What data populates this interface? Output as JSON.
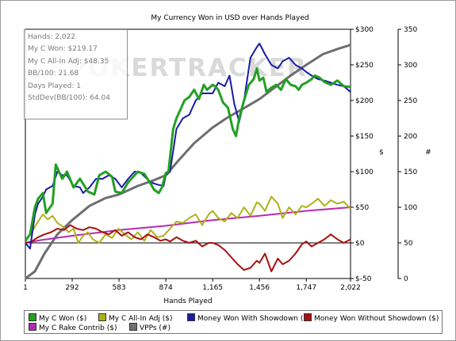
{
  "chart_data": {
    "type": "line",
    "title": "My Currency Won in USD over Hands Played",
    "xlabel": "Hands Played",
    "ylabel_left": "$",
    "ylabel_right": "#",
    "watermark": "POKERTRACKER",
    "x_ticks": [
      "1",
      "292",
      "583",
      "874",
      "1,165",
      "1,456",
      "1,747",
      "2,022"
    ],
    "x_range": [
      1,
      2022
    ],
    "y_left_ticks": [
      "$300",
      "$250",
      "$200",
      "$150",
      "$100",
      "$50",
      "$0",
      "$-50"
    ],
    "y_left_range": [
      -50,
      300
    ],
    "y_right_ticks": [
      "350",
      "300",
      "250",
      "200",
      "150",
      "100",
      "50",
      "0"
    ],
    "y_right_range": [
      0,
      350
    ],
    "grid": false,
    "legend_position": "bottom",
    "stats": [
      "Hands: 2,022",
      "My C Won: $219.17",
      "My C All-In Adj: $48.35",
      "BB/100: 21.68",
      "Days Played: 1",
      "StdDev(BB/100): 64.04"
    ],
    "series": [
      {
        "name": "My C Won ($)",
        "color": "#22a022",
        "axis": "left",
        "x": [
          1,
          30,
          60,
          80,
          110,
          130,
          170,
          190,
          230,
          260,
          300,
          340,
          360,
          390,
          430,
          460,
          500,
          540,
          560,
          600,
          640,
          680,
          700,
          740,
          780,
          800,
          830,
          850,
          874,
          890,
          920,
          940,
          960,
          990,
          1020,
          1050,
          1080,
          1110,
          1130,
          1165,
          1180,
          1200,
          1230,
          1260,
          1290,
          1310,
          1330,
          1360,
          1390,
          1420,
          1440,
          1456,
          1480,
          1500,
          1530,
          1560,
          1590,
          1620,
          1650,
          1680,
          1700,
          1720,
          1747,
          1780,
          1800,
          1830,
          1860,
          1900,
          1940,
          1980,
          2022
        ],
        "y": [
          3,
          12,
          50,
          62,
          70,
          42,
          55,
          110,
          90,
          100,
          78,
          90,
          83,
          72,
          68,
          95,
          100,
          93,
          72,
          70,
          85,
          95,
          100,
          97,
          83,
          75,
          70,
          78,
          98,
          100,
          160,
          175,
          185,
          200,
          205,
          215,
          202,
          222,
          215,
          222,
          220,
          215,
          197,
          190,
          160,
          150,
          175,
          200,
          222,
          230,
          245,
          228,
          232,
          212,
          218,
          222,
          215,
          230,
          222,
          220,
          215,
          222,
          225,
          230,
          235,
          232,
          226,
          222,
          228,
          220,
          219
        ]
      },
      {
        "name": "My C All-In Adj ($)",
        "color": "#b0b018",
        "axis": "left",
        "x": [
          1,
          40,
          80,
          110,
          140,
          170,
          200,
          240,
          270,
          300,
          330,
          360,
          390,
          420,
          460,
          500,
          540,
          580,
          620,
          660,
          700,
          740,
          780,
          820,
          860,
          900,
          940,
          980,
          1020,
          1060,
          1100,
          1140,
          1165,
          1200,
          1240,
          1280,
          1320,
          1360,
          1400,
          1440,
          1456,
          1490,
          1530,
          1570,
          1600,
          1640,
          1680,
          1720,
          1747,
          1780,
          1820,
          1860,
          1900,
          1940,
          1980,
          2022
        ],
        "y": [
          3,
          15,
          30,
          40,
          33,
          38,
          28,
          22,
          15,
          20,
          0,
          10,
          15,
          5,
          0,
          12,
          7,
          20,
          12,
          5,
          15,
          3,
          18,
          8,
          10,
          20,
          30,
          28,
          35,
          40,
          25,
          40,
          45,
          35,
          30,
          42,
          35,
          50,
          38,
          57,
          55,
          45,
          65,
          55,
          35,
          50,
          40,
          52,
          50,
          55,
          62,
          52,
          60,
          55,
          58,
          48
        ]
      },
      {
        "name": "Money Won With Showdown ($)",
        "color": "#1a1aa8",
        "axis": "left",
        "x": [
          1,
          30,
          60,
          80,
          110,
          130,
          170,
          200,
          230,
          260,
          300,
          340,
          360,
          400,
          440,
          480,
          520,
          560,
          600,
          640,
          680,
          720,
          780,
          820,
          860,
          874,
          900,
          940,
          980,
          1020,
          1060,
          1100,
          1165,
          1200,
          1240,
          1270,
          1300,
          1330,
          1360,
          1400,
          1440,
          1456,
          1490,
          1530,
          1570,
          1600,
          1640,
          1680,
          1720,
          1747,
          1780,
          1820,
          1860,
          1900,
          1940,
          1980,
          2022
        ],
        "y": [
          0,
          -8,
          40,
          55,
          65,
          75,
          80,
          100,
          95,
          95,
          80,
          78,
          70,
          78,
          90,
          90,
          95,
          90,
          78,
          90,
          100,
          98,
          85,
          82,
          80,
          95,
          100,
          160,
          175,
          180,
          200,
          210,
          210,
          225,
          220,
          235,
          195,
          170,
          200,
          260,
          275,
          280,
          265,
          250,
          245,
          255,
          260,
          250,
          245,
          240,
          235,
          230,
          228,
          225,
          222,
          220,
          212
        ]
      },
      {
        "name": "Money Won Without Showdown ($)",
        "color": "#a81010",
        "axis": "left",
        "x": [
          1,
          40,
          80,
          120,
          160,
          200,
          240,
          280,
          320,
          360,
          400,
          440,
          480,
          520,
          560,
          600,
          640,
          680,
          720,
          760,
          800,
          840,
          874,
          900,
          940,
          980,
          1020,
          1060,
          1100,
          1140,
          1165,
          1200,
          1240,
          1280,
          1320,
          1360,
          1400,
          1440,
          1456,
          1490,
          1530,
          1570,
          1600,
          1640,
          1680,
          1720,
          1747,
          1780,
          1820,
          1860,
          1900,
          1940,
          1980,
          2022
        ],
        "y": [
          0,
          2,
          8,
          12,
          15,
          20,
          18,
          25,
          20,
          18,
          22,
          20,
          15,
          12,
          18,
          10,
          15,
          8,
          5,
          12,
          8,
          3,
          5,
          2,
          8,
          3,
          0,
          3,
          -5,
          0,
          0,
          -3,
          -10,
          -20,
          -30,
          -38,
          -35,
          -25,
          -28,
          -15,
          -40,
          -22,
          -30,
          -25,
          -15,
          -2,
          2,
          -5,
          0,
          5,
          12,
          5,
          0,
          5
        ]
      },
      {
        "name": "My C Rake Contrib ($)",
        "color": "#b42ab4",
        "axis": "left",
        "x": [
          1,
          100,
          292,
          583,
          874,
          1165,
          1456,
          1747,
          2022
        ],
        "y": [
          0,
          4,
          10,
          18,
          24,
          32,
          38,
          45,
          50
        ]
      },
      {
        "name": "VPPs (#)",
        "color": "#6e6e6e",
        "axis": "right",
        "x": [
          1,
          60,
          120,
          200,
          292,
          400,
          500,
          583,
          700,
          800,
          874,
          950,
          1050,
          1165,
          1250,
          1350,
          1456,
          1550,
          1650,
          1747,
          1850,
          1950,
          2022
        ],
        "y": [
          0,
          10,
          35,
          62,
          82,
          102,
          113,
          118,
          130,
          138,
          145,
          165,
          190,
          212,
          225,
          238,
          252,
          268,
          285,
          300,
          315,
          323,
          328
        ]
      }
    ]
  }
}
